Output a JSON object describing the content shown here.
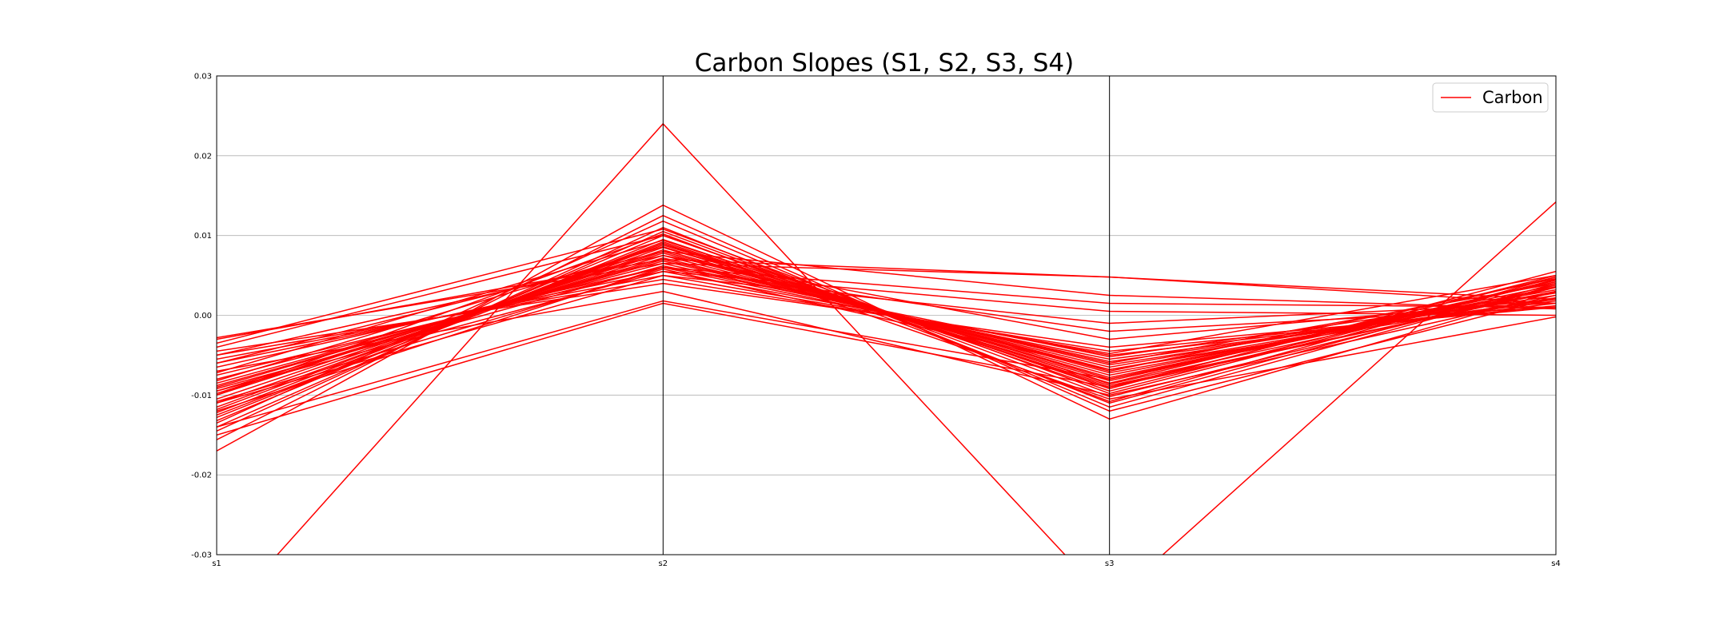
{
  "chart_data": {
    "type": "line",
    "subtype": "parallel-coordinates",
    "title": "Carbon Slopes (S1, S2, S3, S4)",
    "categories": [
      "s1",
      "s2",
      "s3",
      "s4"
    ],
    "ylim": [
      -0.03,
      0.03
    ],
    "yticks": [
      0.03,
      0.02,
      0.01,
      0.0,
      -0.01,
      -0.02,
      -0.03
    ],
    "ytick_labels": [
      "0.03",
      "0.02",
      "0.01",
      "0.00",
      "-0.01",
      "-0.02",
      "-0.03"
    ],
    "grid": "horizontal",
    "legend": {
      "position": "top-right",
      "entries": [
        "Carbon"
      ]
    },
    "series_color": "#ff0000",
    "series": [
      {
        "name": "Carbon",
        "values": [
          -0.0385,
          0.024,
          -0.036,
          0.0142
        ]
      },
      {
        "name": "Carbon",
        "values": [
          -0.017,
          0.0138,
          -0.013,
          0.003
        ]
      },
      {
        "name": "Carbon",
        "values": [
          -0.0156,
          0.0125,
          -0.012,
          0.0022
        ]
      },
      {
        "name": "Carbon",
        "values": [
          -0.0145,
          0.011,
          -0.011,
          0.004
        ]
      },
      {
        "name": "Carbon",
        "values": [
          -0.014,
          0.0105,
          -0.0102,
          0.0035
        ]
      },
      {
        "name": "Carbon",
        "values": [
          -0.0132,
          0.01,
          -0.0095,
          0.0045
        ]
      },
      {
        "name": "Carbon",
        "values": [
          -0.0128,
          0.0095,
          -0.009,
          0.005
        ]
      },
      {
        "name": "Carbon",
        "values": [
          -0.0122,
          0.0092,
          -0.0088,
          0.003
        ]
      },
      {
        "name": "Carbon",
        "values": [
          -0.0118,
          0.009,
          -0.0085,
          0.0048
        ]
      },
      {
        "name": "Carbon",
        "values": [
          -0.0115,
          0.0088,
          -0.008,
          0.0042
        ]
      },
      {
        "name": "Carbon",
        "values": [
          -0.011,
          0.0085,
          -0.0078,
          0.0038
        ]
      },
      {
        "name": "Carbon",
        "values": [
          -0.0105,
          0.0082,
          -0.0075,
          0.0035
        ]
      },
      {
        "name": "Carbon",
        "values": [
          -0.01,
          0.008,
          -0.0072,
          0.003
        ]
      },
      {
        "name": "Carbon",
        "values": [
          -0.0098,
          0.0078,
          -0.007,
          0.0046
        ]
      },
      {
        "name": "Carbon",
        "values": [
          -0.0095,
          0.0075,
          -0.0068,
          0.0028
        ]
      },
      {
        "name": "Carbon",
        "values": [
          -0.009,
          0.0072,
          -0.0065,
          0.0032
        ]
      },
      {
        "name": "Carbon",
        "values": [
          -0.0088,
          0.007,
          -0.0062,
          0.0025
        ]
      },
      {
        "name": "Carbon",
        "values": [
          -0.0085,
          0.0068,
          -0.006,
          0.004
        ]
      },
      {
        "name": "Carbon",
        "values": [
          -0.008,
          0.0065,
          -0.0058,
          0.002
        ]
      },
      {
        "name": "Carbon",
        "values": [
          -0.0075,
          0.006,
          -0.0055,
          0.0018
        ]
      },
      {
        "name": "Carbon",
        "values": [
          -0.006,
          0.0055,
          -0.005,
          0.0015
        ]
      },
      {
        "name": "Carbon",
        "values": [
          -0.0055,
          0.005,
          -0.0048,
          0.005
        ]
      },
      {
        "name": "Carbon",
        "values": [
          -0.005,
          0.0045,
          -0.0045,
          0.0012
        ]
      },
      {
        "name": "Carbon",
        "values": [
          -0.0045,
          0.004,
          -0.004,
          0.001
        ]
      },
      {
        "name": "Carbon",
        "values": [
          -0.004,
          0.01,
          -0.0092,
          0.0055
        ]
      },
      {
        "name": "Carbon",
        "values": [
          -0.0035,
          0.0108,
          -0.0098,
          0.0044
        ]
      },
      {
        "name": "Carbon",
        "values": [
          -0.003,
          0.007,
          0.0048,
          0.0015
        ]
      },
      {
        "name": "Carbon",
        "values": [
          -0.0028,
          0.0065,
          0.0048,
          0.002
        ]
      },
      {
        "name": "Carbon",
        "values": [
          -0.006,
          0.008,
          0.0025,
          0.0008
        ]
      },
      {
        "name": "Carbon",
        "values": [
          -0.0065,
          0.006,
          0.0015,
          0.001
        ]
      },
      {
        "name": "Carbon",
        "values": [
          -0.0095,
          0.0055,
          0.0005,
          0.0
        ]
      },
      {
        "name": "Carbon",
        "values": [
          -0.011,
          0.005,
          -0.001,
          0.0015
        ]
      },
      {
        "name": "Carbon",
        "values": [
          -0.012,
          0.006,
          -0.002,
          0.001
        ]
      },
      {
        "name": "Carbon",
        "values": [
          -0.005,
          0.0075,
          -0.003,
          0.002
        ]
      },
      {
        "name": "Carbon",
        "values": [
          -0.014,
          0.0018,
          -0.008,
          0.0035
        ]
      },
      {
        "name": "Carbon",
        "values": [
          -0.015,
          0.0015,
          -0.009,
          0.003
        ]
      },
      {
        "name": "Carbon",
        "values": [
          -0.007,
          0.003,
          -0.01,
          0.0025
        ]
      },
      {
        "name": "Carbon",
        "values": [
          -0.0135,
          0.0118,
          -0.0115,
          0.0038
        ]
      },
      {
        "name": "Carbon",
        "values": [
          -0.0125,
          0.009,
          -0.0105,
          -0.0002
        ]
      },
      {
        "name": "Carbon",
        "values": [
          -0.0108,
          0.0058,
          -0.0068,
          0.0022
        ]
      },
      {
        "name": "Carbon",
        "values": [
          -0.0092,
          0.0062,
          -0.0052,
          0.0028
        ]
      },
      {
        "name": "Carbon",
        "values": [
          -0.0082,
          0.0086,
          -0.0082,
          0.0042
        ]
      },
      {
        "name": "Carbon",
        "values": [
          -0.0072,
          0.0094,
          -0.0086,
          0.0036
        ]
      },
      {
        "name": "Carbon",
        "values": [
          -0.01,
          0.0102,
          -0.0108,
          0.0048
        ]
      }
    ]
  }
}
